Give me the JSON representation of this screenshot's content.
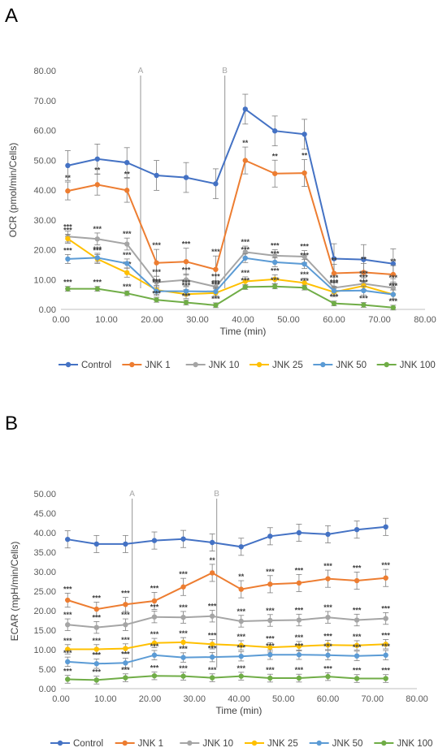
{
  "panels": {
    "a": {
      "letter": "A"
    },
    "b": {
      "letter": "B"
    }
  },
  "chart_data": [
    {
      "type": "line",
      "panel": "A",
      "title": "",
      "xlabel": "Time (min)",
      "ylabel": "OCR (pmol/min/Cells)",
      "xlim": [
        0,
        80
      ],
      "ylim": [
        0,
        80
      ],
      "x_ticks": [
        "0.00",
        "10.00",
        "20.00",
        "30.00",
        "40.00",
        "50.00",
        "60.00",
        "70.00",
        "80.00"
      ],
      "y_ticks": [
        "0.00",
        "10.00",
        "20.00",
        "30.00",
        "40.00",
        "50.00",
        "60.00",
        "70.00",
        "80.00"
      ],
      "grid": false,
      "legend_position": "bottom",
      "x": [
        1.5,
        8,
        14.5,
        21,
        27.5,
        34,
        40.5,
        47,
        53.5,
        60,
        66.5,
        73
      ],
      "injections": [
        {
          "label": "A",
          "x": 17.5
        },
        {
          "label": "B",
          "x": 36
        }
      ],
      "series": [
        {
          "name": "Control",
          "color": "#4472C4",
          "values": [
            48.2,
            50.4,
            49.2,
            44.9,
            44.2,
            42.1,
            67.1,
            59.8,
            58.7,
            17.0,
            16.7,
            15.3
          ],
          "errors": [
            5.0,
            5.0,
            5.0,
            5.0,
            5.0,
            5.0,
            5.0,
            5.0,
            5.0,
            5.0,
            5.0,
            5.0
          ]
        },
        {
          "name": "JNK 1",
          "color": "#ED7D31",
          "values": [
            39.7,
            41.8,
            39.9,
            15.6,
            16.0,
            13.4,
            49.9,
            45.5,
            45.7,
            12.1,
            12.4,
            11.7
          ],
          "errors": [
            3.0,
            3.5,
            4.0,
            4.5,
            4.5,
            4.5,
            4.5,
            4.5,
            4.5,
            3.0,
            3.0,
            3.0
          ],
          "significance": [
            "**",
            "**",
            "**",
            "***",
            "***",
            "***",
            "**",
            "**",
            "**",
            "**",
            "**",
            "**"
          ]
        },
        {
          "name": "JNK 10",
          "color": "#A5A5A5",
          "values": [
            24.4,
            23.6,
            21.9,
            9.1,
            9.9,
            7.6,
            19.2,
            18.0,
            17.7,
            7.2,
            8.6,
            7.2
          ],
          "errors": [
            1.8,
            2.0,
            2.0,
            2.0,
            2.0,
            2.0,
            2.0,
            2.0,
            2.0,
            2.0,
            2.0,
            2.0
          ],
          "significance": [
            "***",
            "***",
            "***",
            "***",
            "***",
            "***",
            "***",
            "***",
            "***",
            "***",
            "***",
            "***"
          ]
        },
        {
          "name": "JNK 25",
          "color": "#FFC000",
          "values": [
            23.7,
            16.9,
            12.3,
            6.5,
            5.1,
            5.5,
            9.4,
            10.1,
            8.9,
            5.8,
            7.9,
            5.0
          ],
          "errors": [
            1.5,
            1.5,
            1.5,
            1.5,
            1.5,
            1.5,
            1.5,
            1.5,
            1.5,
            1.5,
            1.5,
            1.5
          ],
          "significance": [
            "***",
            "***",
            "***",
            "***",
            "***",
            "***",
            "***",
            "***",
            "***",
            "***",
            "***",
            "***"
          ]
        },
        {
          "name": "JNK 50",
          "color": "#5B9BD5",
          "values": [
            16.9,
            17.3,
            15.4,
            6.1,
            6.1,
            6.0,
            17.2,
            15.8,
            15.2,
            6.2,
            6.3,
            5.0
          ],
          "errors": [
            1.5,
            1.5,
            1.5,
            1.5,
            1.5,
            1.5,
            1.5,
            1.5,
            1.5,
            1.5,
            1.5,
            1.5
          ],
          "significance": [
            "***",
            "***",
            "***",
            "***",
            "***",
            "***",
            "***",
            "***",
            "***",
            "***",
            "***",
            "***"
          ]
        },
        {
          "name": "JNK 100",
          "color": "#70AD47",
          "values": [
            6.9,
            6.9,
            5.4,
            3.2,
            2.3,
            1.4,
            7.5,
            7.7,
            7.3,
            2.0,
            1.5,
            0.6
          ],
          "errors": [
            0.8,
            0.8,
            0.8,
            0.8,
            0.8,
            0.8,
            0.8,
            0.8,
            0.8,
            0.8,
            0.8,
            0.8
          ],
          "significance": [
            "***",
            "***",
            "***",
            "***",
            "***",
            "***",
            "***",
            "***",
            "***",
            "***",
            "***",
            "***"
          ]
        }
      ]
    },
    {
      "type": "line",
      "panel": "B",
      "title": "",
      "xlabel": "Time (min)",
      "ylabel": "ECAR (mpH/min/Cells)",
      "xlim": [
        0,
        80
      ],
      "ylim": [
        0,
        50
      ],
      "x_ticks": [
        "0.00",
        "10.00",
        "20.00",
        "30.00",
        "40.00",
        "50.00",
        "60.00",
        "70.00",
        "80.00"
      ],
      "y_ticks": [
        "0.00",
        "5.00",
        "10.00",
        "15.00",
        "20.00",
        "25.00",
        "30.00",
        "35.00",
        "40.00",
        "45.00",
        "50.00"
      ],
      "grid": false,
      "legend_position": "bottom",
      "x": [
        1.5,
        8,
        14.5,
        21,
        27.5,
        34,
        40.5,
        47,
        53.5,
        60,
        66.5,
        73
      ],
      "injections": [
        {
          "label": "A",
          "x": 16
        },
        {
          "label": "B",
          "x": 35
        }
      ],
      "series": [
        {
          "name": "Control",
          "color": "#4472C4",
          "values": [
            38.3,
            37.1,
            37.1,
            38.0,
            38.4,
            37.5,
            36.4,
            39.1,
            40.0,
            39.6,
            40.8,
            41.5
          ],
          "errors": [
            2.2,
            2.2,
            2.2,
            2.2,
            2.2,
            2.2,
            2.2,
            2.2,
            2.2,
            2.2,
            2.2,
            2.2
          ]
        },
        {
          "name": "JNK 1",
          "color": "#ED7D31",
          "values": [
            22.7,
            20.4,
            21.6,
            22.5,
            26.1,
            29.7,
            25.5,
            26.8,
            27.1,
            28.2,
            27.7,
            28.4
          ],
          "errors": [
            1.8,
            1.8,
            1.8,
            2.2,
            2.2,
            2.2,
            2.2,
            2.2,
            2.2,
            2.2,
            2.2,
            2.2
          ],
          "significance": [
            "***",
            "***",
            "***",
            "***",
            "***",
            "**",
            "**",
            "***",
            "***",
            "***",
            "***",
            "***"
          ]
        },
        {
          "name": "JNK 10",
          "color": "#A5A5A5",
          "values": [
            16.4,
            15.7,
            16.4,
            18.4,
            18.3,
            18.6,
            17.3,
            17.5,
            17.6,
            18.3,
            17.6,
            18.0
          ],
          "errors": [
            1.5,
            1.5,
            1.5,
            1.5,
            1.5,
            1.5,
            1.5,
            1.5,
            1.5,
            1.5,
            1.5,
            1.5
          ],
          "significance": [
            "***",
            "***",
            "***",
            "***",
            "***",
            "***",
            "***",
            "***",
            "***",
            "***",
            "***",
            "***"
          ]
        },
        {
          "name": "JNK 25",
          "color": "#FFC000",
          "values": [
            10.1,
            10.1,
            10.3,
            11.7,
            11.9,
            11.4,
            11.1,
            10.6,
            10.9,
            11.2,
            11.1,
            11.4
          ],
          "errors": [
            1.2,
            1.2,
            1.2,
            1.2,
            1.2,
            1.2,
            1.2,
            1.2,
            1.2,
            1.2,
            1.2,
            1.2
          ],
          "significance": [
            "***",
            "***",
            "***",
            "***",
            "***",
            "***",
            "***",
            "***",
            "***",
            "***",
            "***",
            "***"
          ]
        },
        {
          "name": "JNK 50",
          "color": "#5B9BD5",
          "values": [
            6.9,
            6.4,
            6.6,
            8.6,
            8.0,
            8.1,
            8.3,
            8.7,
            8.7,
            8.6,
            8.4,
            8.6
          ],
          "errors": [
            1.2,
            1.2,
            1.2,
            1.2,
            1.2,
            1.2,
            1.2,
            1.2,
            1.2,
            1.2,
            1.2,
            1.2
          ],
          "significance": [
            "***",
            "***",
            "***",
            "***",
            "***",
            "***",
            "***",
            "***",
            "***",
            "***",
            "***",
            "***"
          ]
        },
        {
          "name": "JNK 100",
          "color": "#70AD47",
          "values": [
            2.4,
            2.2,
            2.8,
            3.3,
            3.2,
            2.8,
            3.2,
            2.7,
            2.7,
            3.1,
            2.6,
            2.6
          ],
          "errors": [
            1.0,
            1.0,
            1.0,
            1.0,
            1.0,
            1.0,
            1.0,
            1.0,
            1.0,
            1.0,
            1.0,
            1.0
          ],
          "significance": [
            "***",
            "***",
            "***",
            "***",
            "***",
            "***",
            "***",
            "***",
            "***",
            "***",
            "***",
            "***"
          ]
        }
      ]
    }
  ]
}
